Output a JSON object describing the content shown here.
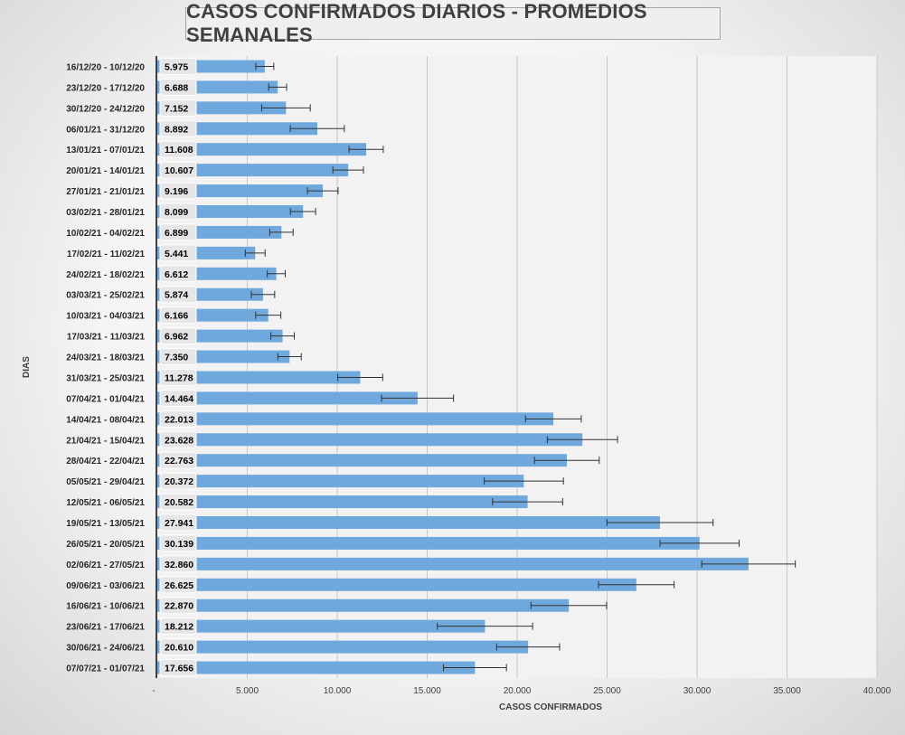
{
  "chart_data": {
    "type": "bar",
    "orientation": "horizontal",
    "title": "CASOS CONFIRMADOS DIARIOS - PROMEDIOS SEMANALES",
    "xlabel": "CASOS CONFIRMADOS",
    "ylabel": "DIAS",
    "xlim": [
      0,
      40000
    ],
    "x_ticks": [
      "-",
      "5.000",
      "10.000",
      "15.000",
      "20.000",
      "25.000",
      "30.000",
      "35.000",
      "40.000"
    ],
    "grid": true,
    "error_bars": true,
    "bar_color": "#6fa8dc",
    "categories": [
      "16/12/20 - 10/12/20",
      "23/12/20 - 17/12/20",
      "30/12/20 - 24/12/20",
      "06/01/21 - 31/12/20",
      "13/01/21 - 07/01/21",
      "20/01/21 - 14/01/21",
      "27/01/21 - 21/01/21",
      "03/02/21 - 28/01/21",
      "10/02/21 - 04/02/21",
      "17/02/21 - 11/02/21",
      "24/02/21 - 18/02/21",
      "03/03/21 - 25/02/21",
      "10/03/21 - 04/03/21",
      "17/03/21 - 11/03/21",
      "24/03/21 - 18/03/21",
      "31/03/21 - 25/03/21",
      "07/04/21 - 01/04/21",
      "14/04/21 - 08/04/21",
      "21/04/21 - 15/04/21",
      "28/04/21 - 22/04/21",
      "05/05/21 - 29/04/21",
      "12/05/21 - 06/05/21",
      "19/05/21 - 13/05/21",
      "26/05/21 - 20/05/21",
      "02/06/21 - 27/05/21",
      "09/06/21 - 03/06/21",
      "16/06/21 - 10/06/21",
      "23/06/21 - 17/06/21",
      "30/06/21 - 24/06/21",
      "07/07/21 - 01/07/21"
    ],
    "values": [
      5975,
      6688,
      7152,
      8892,
      11608,
      10607,
      9196,
      8099,
      6899,
      5441,
      6612,
      5874,
      6166,
      6962,
      7350,
      11278,
      14464,
      22013,
      23628,
      22763,
      20372,
      20582,
      27941,
      30139,
      32860,
      26625,
      22870,
      18212,
      20610,
      17656
    ],
    "value_labels": [
      "5.975",
      "6.688",
      "7.152",
      "8.892",
      "11.608",
      "10.607",
      "9.196",
      "8.099",
      "6.899",
      "5.441",
      "6.612",
      "5.874",
      "6.166",
      "6.962",
      "7.350",
      "11.278",
      "14.464",
      "22.013",
      "23.628",
      "22.763",
      "20.372",
      "20.582",
      "27.941",
      "30.139",
      "32.860",
      "26.625",
      "22.870",
      "18.212",
      "20.610",
      "17.656"
    ],
    "errors": [
      500,
      500,
      1350,
      1500,
      950,
      850,
      850,
      700,
      650,
      550,
      500,
      650,
      700,
      650,
      650,
      1250,
      2000,
      1550,
      1950,
      1800,
      2200,
      1950,
      2950,
      2200,
      2600,
      2100,
      2100,
      2650,
      1750,
      1750
    ]
  }
}
